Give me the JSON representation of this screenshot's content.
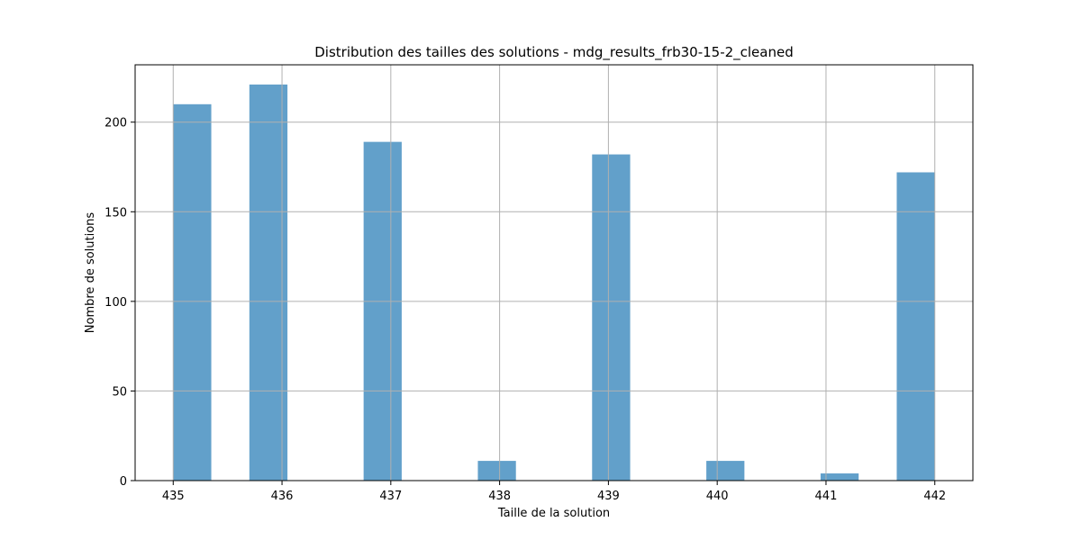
{
  "chart_data": {
    "type": "bar",
    "title": "Distribution des tailles des solutions - mdg_results_frb30-15-2_cleaned",
    "xlabel": "Taille de la solution",
    "ylabel": "Nombre de solutions",
    "xlim": [
      434.65,
      442.35
    ],
    "ylim": [
      0,
      232
    ],
    "x_ticks": [
      435,
      436,
      437,
      438,
      439,
      440,
      441,
      442
    ],
    "y_ticks": [
      0,
      50,
      100,
      150,
      200
    ],
    "bin_width": 0.35,
    "bars": [
      {
        "x": 435.0,
        "value": 210
      },
      {
        "x": 435.7,
        "value": 221
      },
      {
        "x": 436.75,
        "value": 189
      },
      {
        "x": 437.8,
        "value": 11
      },
      {
        "x": 438.85,
        "value": 182
      },
      {
        "x": 439.9,
        "value": 11
      },
      {
        "x": 440.95,
        "value": 4
      },
      {
        "x": 441.65,
        "value": 172
      }
    ],
    "grid": true,
    "bar_color": "#1f77b4",
    "bar_alpha": 0.7,
    "grid_color": "#b0b0b0"
  }
}
